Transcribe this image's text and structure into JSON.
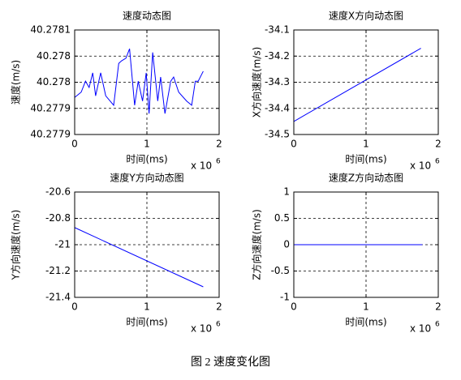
{
  "chart_data": [
    {
      "type": "line",
      "title": "速度动态图",
      "xlabel": "时间(ms)",
      "ylabel": "速度(m/s)",
      "x_scale": {
        "base": "x 10",
        "exponent": "6"
      },
      "xlim": [
        0,
        2
      ],
      "xticks": [
        0,
        1,
        2
      ],
      "ylim": [
        40.27785,
        40.27805
      ],
      "yticks": [
        {
          "value": 40.27785,
          "label": "40.2779"
        },
        {
          "value": 40.2779,
          "label": "40.2779"
        },
        {
          "value": 40.27795,
          "label": "40.278"
        },
        {
          "value": 40.278,
          "label": "40.278"
        },
        {
          "value": 40.27805,
          "label": "40.2781"
        }
      ],
      "grid": true,
      "color": "#0000ff",
      "x": [
        0,
        0.09,
        0.15,
        0.2,
        0.25,
        0.29,
        0.36,
        0.43,
        0.54,
        0.61,
        0.65,
        0.71,
        0.76,
        0.83,
        0.88,
        0.94,
        0.99,
        1.03,
        1.08,
        1.15,
        1.19,
        1.25,
        1.33,
        1.37,
        1.44,
        1.55,
        1.62,
        1.67,
        1.71,
        1.78
      ],
      "values": [
        40.277921,
        40.277931,
        40.277952,
        40.27794,
        40.277968,
        40.277924,
        40.277968,
        40.277924,
        40.277906,
        40.277986,
        40.277991,
        40.277996,
        40.278014,
        40.277906,
        40.277952,
        40.277914,
        40.277968,
        40.27789,
        40.278007,
        40.277914,
        40.27796,
        40.27789,
        40.277952,
        40.27796,
        40.277931,
        40.277914,
        40.277906,
        40.277952,
        40.277952,
        40.277971
      ]
    },
    {
      "type": "line",
      "title": "速度X方向动态图",
      "xlabel": "时间(ms)",
      "ylabel": "X方向速度(m/s)",
      "x_scale": {
        "base": "x 10",
        "exponent": "6"
      },
      "xlim": [
        0,
        2
      ],
      "xticks": [
        0,
        1,
        2
      ],
      "ylim": [
        -34.5,
        -34.1
      ],
      "yticks": [
        -34.5,
        -34.4,
        -34.3,
        -34.2,
        -34.1
      ],
      "grid": true,
      "color": "#0000ff",
      "x": [
        0,
        1.76
      ],
      "values": [
        -34.45,
        -34.17
      ]
    },
    {
      "type": "line",
      "title": "速度Y方向动态图",
      "xlabel": "时间(ms)",
      "ylabel": "Y方向速度(m/s)",
      "x_scale": {
        "base": "x 10",
        "exponent": "6"
      },
      "xlim": [
        0,
        2
      ],
      "xticks": [
        0,
        1,
        2
      ],
      "ylim": [
        -21.4,
        -20.6
      ],
      "yticks": [
        -21.4,
        -21.2,
        -21,
        -20.8,
        -20.6
      ],
      "grid": true,
      "color": "#0000ff",
      "x": [
        0,
        1.78
      ],
      "values": [
        -20.87,
        -21.32
      ]
    },
    {
      "type": "line",
      "title": "速度Z方向动态图",
      "xlabel": "时间(ms)",
      "ylabel": "Z方向速度(m/s)",
      "x_scale": {
        "base": "x 10",
        "exponent": "6"
      },
      "xlim": [
        0,
        2
      ],
      "xticks": [
        0,
        1,
        2
      ],
      "ylim": [
        -1,
        1
      ],
      "yticks": [
        -1,
        -0.5,
        0,
        0.5,
        1
      ],
      "grid": true,
      "color": "#0000ff",
      "x": [
        0,
        1.78
      ],
      "values": [
        0,
        0
      ]
    }
  ],
  "caption": "图 2 速度变化图"
}
